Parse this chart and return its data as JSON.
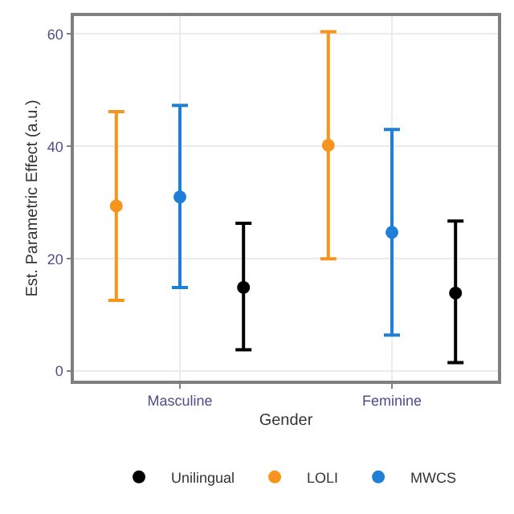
{
  "chart_data": {
    "type": "scatter",
    "xlabel": "Gender",
    "ylabel": "Est. Parametric Effect (a.u.)",
    "categories": [
      "Masculine",
      "Feminine"
    ],
    "series": [
      {
        "name": "LOLI",
        "color": "#f7941d",
        "values": [
          29.4,
          40.2
        ],
        "errors": [
          [
            12.6,
            46.2
          ],
          [
            20.0,
            60.4
          ]
        ]
      },
      {
        "name": "MWCS",
        "color": "#1f7fd6",
        "values": [
          31.0,
          24.7
        ],
        "errors": [
          [
            14.9,
            47.3
          ],
          [
            6.4,
            43.0
          ]
        ]
      },
      {
        "name": "Unilingual",
        "color": "#000000",
        "values": [
          14.9,
          13.9
        ],
        "errors": [
          [
            3.8,
            26.3
          ],
          [
            1.5,
            26.7
          ]
        ]
      }
    ],
    "ylim": [
      -1.7,
      63.2
    ],
    "yticks": [
      0,
      20,
      40,
      60
    ],
    "grid": true,
    "legend": "bottom",
    "marker": "circle"
  }
}
